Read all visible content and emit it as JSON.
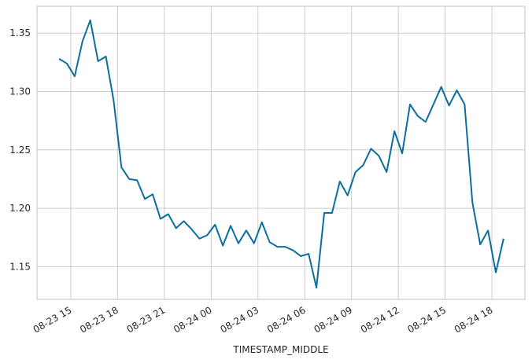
{
  "chart_data": {
    "type": "line",
    "x_label": "TIMESTAMP_MIDDLE",
    "x": [
      "08-23 14:15",
      "08-23 14:45",
      "08-23 15:15",
      "08-23 15:45",
      "08-23 16:15",
      "08-23 16:45",
      "08-23 17:15",
      "08-23 17:45",
      "08-23 18:15",
      "08-23 18:45",
      "08-23 19:15",
      "08-23 19:45",
      "08-23 20:15",
      "08-23 20:45",
      "08-23 21:15",
      "08-23 21:45",
      "08-23 22:15",
      "08-23 22:45",
      "08-23 23:15",
      "08-23 23:45",
      "08-24 00:15",
      "08-24 00:45",
      "08-24 01:15",
      "08-24 01:45",
      "08-24 02:15",
      "08-24 02:45",
      "08-24 03:15",
      "08-24 03:45",
      "08-24 04:15",
      "08-24 04:45",
      "08-24 05:15",
      "08-24 05:45",
      "08-24 06:15",
      "08-24 06:45",
      "08-24 07:15",
      "08-24 07:45",
      "08-24 08:15",
      "08-24 08:45",
      "08-24 09:15",
      "08-24 09:45",
      "08-24 10:15",
      "08-24 10:45",
      "08-24 11:15",
      "08-24 11:45",
      "08-24 12:15",
      "08-24 12:45",
      "08-24 13:15",
      "08-24 13:45",
      "08-24 14:15",
      "08-24 14:45",
      "08-24 15:15",
      "08-24 15:45",
      "08-24 16:15",
      "08-24 16:45",
      "08-24 17:15",
      "08-24 17:45",
      "08-24 18:15",
      "08-24 18:45"
    ],
    "series": [
      {
        "color": "#0b6e9c",
        "values": [
          1.328,
          1.324,
          1.313,
          1.343,
          1.361,
          1.326,
          1.33,
          1.292,
          1.235,
          1.225,
          1.224,
          1.208,
          1.212,
          1.191,
          1.195,
          1.183,
          1.189,
          1.182,
          1.174,
          1.177,
          1.186,
          1.168,
          1.185,
          1.17,
          1.181,
          1.17,
          1.188,
          1.171,
          1.167,
          1.167,
          1.164,
          1.159,
          1.161,
          1.132,
          1.196,
          1.196,
          1.223,
          1.211,
          1.231,
          1.237,
          1.251,
          1.245,
          1.231,
          1.266,
          1.247,
          1.289,
          1.279,
          1.274,
          1.289,
          1.304,
          1.288,
          1.301,
          1.289,
          1.205,
          1.169,
          1.181,
          1.145,
          1.174
        ]
      }
    ],
    "xlim": [
      "08-23 12:50",
      "08-24 20:07"
    ],
    "xticks": [
      "08-23 15",
      "08-23 18",
      "08-23 21",
      "08-24 00",
      "08-24 03",
      "08-24 06",
      "08-24 09",
      "08-24 12",
      "08-24 15",
      "08-24 18"
    ],
    "ylim": [
      1.122,
      1.373
    ],
    "yticks": [
      1.15,
      {
        "value": 1.2,
        "label": "1.20"
      },
      1.25,
      {
        "value": 1.3,
        "label": "1.30"
      },
      1.35
    ],
    "grid": true
  }
}
